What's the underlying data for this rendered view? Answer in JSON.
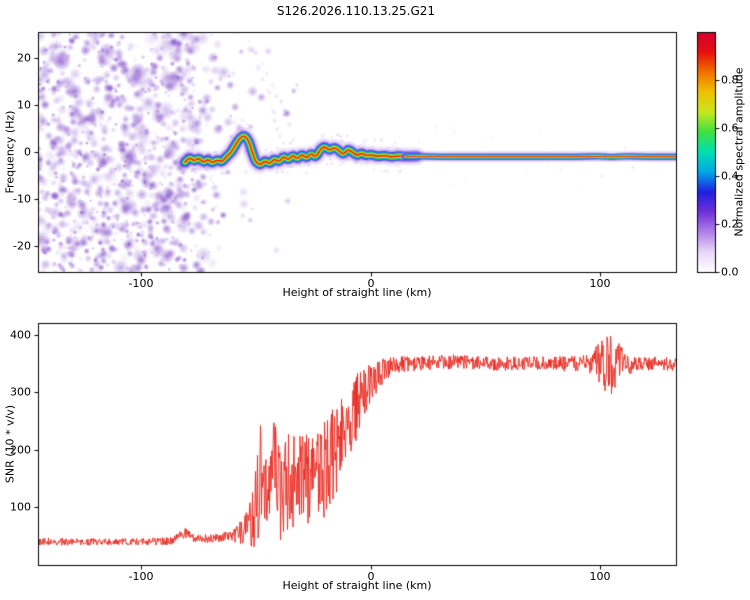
{
  "chart_data": [
    {
      "type": "heatmap",
      "title": "S126.2026.110.13.25.G21",
      "xlabel": "Height of straight line (km)",
      "ylabel": "Frequency (Hz)",
      "xlim": [
        -145,
        133
      ],
      "ylim": [
        -25.6,
        25.6
      ],
      "xticks": [
        "-100",
        "0",
        "100"
      ],
      "xtick_values": [
        -100,
        0,
        100
      ],
      "yticks": [
        "20",
        "10",
        "0",
        "-10",
        "-20"
      ],
      "ytick_values": [
        20,
        10,
        0,
        -10,
        -20
      ],
      "grid": false,
      "colorbar": {
        "label": "Normalized spectral amplitude",
        "ticks": [
          "0.0",
          "0.2",
          "0.4",
          "0.6",
          "0.8"
        ],
        "tick_values": [
          0,
          0.2,
          0.4,
          0.6,
          0.8
        ],
        "range": [
          0,
          1
        ],
        "colors": [
          "#ffffff",
          "#e8d8f8",
          "#b080e8",
          "#7030d8",
          "#2020e0",
          "#00a8e8",
          "#00e0b0",
          "#40e040",
          "#c8e820",
          "#f0c000",
          "#f07000",
          "#e81010",
          "#d00030"
        ]
      },
      "noise": {
        "seed": 1234,
        "blob_count": 1700,
        "dense_end": -82,
        "fade_end": -45,
        "sparse_end": -25,
        "streaks": [
          [
            [
              -53,
              24
            ],
            [
              -38,
              2
            ],
            14
          ],
          [
            [
              -47,
              19
            ],
            [
              -36,
              6
            ],
            10
          ]
        ]
      },
      "trace": {
        "points": [
          [
            -81,
            -2.2
          ],
          [
            -79,
            -1.0
          ],
          [
            -77,
            -2.0
          ],
          [
            -75,
            -1.2
          ],
          [
            -73,
            -2.3
          ],
          [
            -71,
            -1.5
          ],
          [
            -69,
            -2.4
          ],
          [
            -67,
            -1.6
          ],
          [
            -65,
            -2.2
          ],
          [
            -63,
            -1.0
          ],
          [
            -61,
            -0.2
          ],
          [
            -59,
            1.5
          ],
          [
            -57,
            3.0
          ],
          [
            -55,
            3.6
          ],
          [
            -53,
            2.2
          ],
          [
            -52,
            0.5
          ],
          [
            -51,
            -1.0
          ],
          [
            -50,
            -2.2
          ],
          [
            -48,
            -2.8
          ],
          [
            -46,
            -1.8
          ],
          [
            -44,
            -2.6
          ],
          [
            -42,
            -1.4
          ],
          [
            -40,
            -2.2
          ],
          [
            -38,
            -0.8
          ],
          [
            -36,
            -1.8
          ],
          [
            -34,
            -0.6
          ],
          [
            -32,
            -1.6
          ],
          [
            -30,
            -0.4
          ],
          [
            -28,
            -1.4
          ],
          [
            -26,
            -0.2
          ],
          [
            -24,
            -1.2
          ],
          [
            -22,
            0.6
          ],
          [
            -20,
            1.2
          ],
          [
            -18,
            0.3
          ],
          [
            -16,
            1.0
          ],
          [
            -14,
            0.4
          ],
          [
            -12,
            -0.6
          ],
          [
            -10,
            0.6
          ],
          [
            -8,
            0.0
          ],
          [
            -6,
            -0.8
          ],
          [
            -4,
            -0.2
          ],
          [
            -2,
            -0.8
          ],
          [
            0,
            -0.5
          ],
          [
            3,
            -1.0
          ],
          [
            6,
            -0.7
          ],
          [
            9,
            -1.1
          ],
          [
            12,
            -0.8
          ],
          [
            15,
            -1.0
          ],
          [
            20,
            -0.9
          ],
          [
            30,
            -1.0
          ],
          [
            45,
            -1.0
          ],
          [
            60,
            -1.0
          ],
          [
            75,
            -1.0
          ],
          [
            90,
            -1.0
          ],
          [
            100,
            -0.9
          ],
          [
            105,
            -1.1
          ],
          [
            110,
            -0.9
          ],
          [
            120,
            -1.0
          ],
          [
            133,
            -1.0
          ]
        ]
      }
    },
    {
      "type": "line",
      "xlabel": "Height of straight line (km)",
      "ylabel": "SNR (10 * v/v)",
      "series_color": "#e8251c",
      "xlim": [
        -145,
        133
      ],
      "ylim": [
        0,
        420
      ],
      "xticks": [
        "-100",
        "0",
        "100"
      ],
      "xtick_values": [
        -100,
        0,
        100
      ],
      "yticks": [
        "400",
        "300",
        "200",
        "100"
      ],
      "ytick_values": [
        400,
        300,
        200,
        100
      ],
      "grid": false,
      "seed": 77,
      "envelope": [
        [
          -145,
          40,
          6
        ],
        [
          -100,
          40,
          6
        ],
        [
          -86,
          42,
          7
        ],
        [
          -81,
          56,
          9
        ],
        [
          -77,
          45,
          7
        ],
        [
          -68,
          46,
          8
        ],
        [
          -60,
          50,
          10
        ],
        [
          -55,
          60,
          25
        ],
        [
          -51,
          90,
          60
        ],
        [
          -48,
          150,
          95
        ],
        [
          -45,
          115,
          80
        ],
        [
          -42,
          150,
          100
        ],
        [
          -39,
          125,
          85
        ],
        [
          -36,
          150,
          95
        ],
        [
          -33,
          135,
          85
        ],
        [
          -30,
          155,
          90
        ],
        [
          -27,
          140,
          85
        ],
        [
          -24,
          165,
          85
        ],
        [
          -21,
          155,
          80
        ],
        [
          -18,
          185,
          85
        ],
        [
          -15,
          205,
          80
        ],
        [
          -12,
          225,
          70
        ],
        [
          -9,
          250,
          60
        ],
        [
          -6,
          275,
          55
        ],
        [
          -3,
          300,
          45
        ],
        [
          0,
          318,
          35
        ],
        [
          4,
          332,
          25
        ],
        [
          8,
          342,
          18
        ],
        [
          15,
          348,
          14
        ],
        [
          25,
          351,
          13
        ],
        [
          40,
          352,
          12
        ],
        [
          55,
          349,
          12
        ],
        [
          70,
          351,
          12
        ],
        [
          85,
          349,
          13
        ],
        [
          95,
          350,
          15
        ],
        [
          99,
          352,
          35
        ],
        [
          103,
          346,
          58
        ],
        [
          107,
          352,
          45
        ],
        [
          111,
          348,
          20
        ],
        [
          118,
          350,
          12
        ],
        [
          133,
          347,
          10
        ]
      ]
    }
  ]
}
